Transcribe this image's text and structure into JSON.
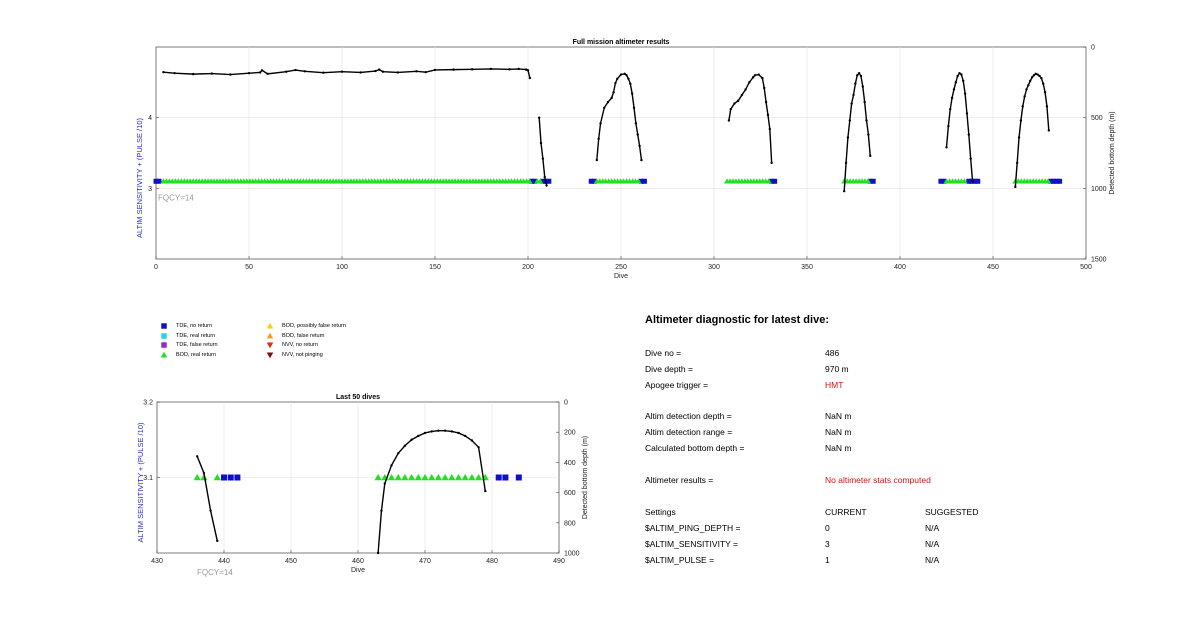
{
  "chart_data": [
    {
      "type": "scatter",
      "title": "Full mission altimeter results",
      "xlabel": "Dive",
      "ylabel_left": "ALTIM SENSITIVITY + (PULSE /10)",
      "ylabel_right": "Detected bottom depth (m)",
      "xlim": [
        0,
        500
      ],
      "ylim_left": [
        2,
        5
      ],
      "ylim_right": [
        0,
        1500
      ],
      "right_axis_reversed": true,
      "grid": true,
      "xticks": [
        0,
        50,
        100,
        150,
        200,
        250,
        300,
        350,
        400,
        450,
        500
      ],
      "yticks_left": [
        3,
        4
      ],
      "yticks_right": [
        0,
        500,
        1000,
        1500
      ],
      "annotation": "FQCY=14",
      "series": [
        {
          "label": "TDE, no return",
          "marker": "square",
          "color": "#1010c8",
          "y": 3.1,
          "x_ranges": [
            [
              0,
              3
            ],
            [
              202,
              204
            ],
            [
              208,
              212
            ],
            [
              234,
              236
            ],
            [
              261,
              264
            ],
            [
              331,
              334
            ],
            [
              384,
              387
            ],
            [
              422,
              424
            ],
            [
              437,
              442
            ],
            [
              481,
              486
            ]
          ]
        },
        {
          "label": "BOD, real return",
          "marker": "triangle",
          "color": "#22e022",
          "y": 3.1,
          "x_ranges": [
            [
              4,
              201
            ],
            [
              205,
              207
            ],
            [
              237,
              260
            ],
            [
              307,
              330
            ],
            [
              370,
              383
            ],
            [
              425,
              436
            ],
            [
              462,
              480
            ]
          ]
        },
        {
          "label": "Detected bottom depth",
          "marker": "line-dot",
          "color": "#000000",
          "axis": "right",
          "segments": [
            {
              "x": [
                4,
                10,
                20,
                30,
                40,
                50,
                56,
                57,
                60,
                70,
                75,
                80,
                90,
                100,
                110,
                118,
                120,
                122,
                130,
                140,
                145,
                150,
                160,
                170,
                180,
                190,
                195,
                199,
                200,
                201
              ],
              "y": [
                178,
                185,
                192,
                188,
                195,
                185,
                180,
                165,
                190,
                175,
                163,
                172,
                182,
                175,
                180,
                170,
                160,
                175,
                180,
                172,
                178,
                162,
                160,
                158,
                155,
                158,
                155,
                160,
                165,
                220
              ]
            },
            {
              "x": [
                206,
                207,
                208,
                209,
                210
              ],
              "y": [
                500,
                680,
                790,
                920,
                980
              ]
            },
            {
              "x": [
                237,
                238,
                239,
                241,
                243,
                245,
                246,
                247,
                248,
                250,
                252,
                253,
                254,
                255,
                256,
                257,
                258,
                259,
                260,
                261
              ],
              "y": [
                800,
                650,
                540,
                430,
                390,
                360,
                320,
                255,
                225,
                195,
                190,
                200,
                225,
                260,
                330,
                430,
                540,
                620,
                700,
                800
              ]
            },
            {
              "x": [
                308,
                309,
                311,
                313,
                315,
                317,
                319,
                321,
                322,
                324,
                326,
                327,
                328,
                329,
                330,
                331
              ],
              "y": [
                520,
                440,
                400,
                380,
                340,
                300,
                250,
                215,
                200,
                195,
                220,
                290,
                390,
                480,
                580,
                820
              ]
            },
            {
              "x": [
                370,
                371,
                372,
                373,
                374,
                375,
                376,
                377,
                378,
                379,
                380,
                381,
                382,
                383,
                384
              ],
              "y": [
                1020,
                820,
                640,
                520,
                400,
                340,
                260,
                200,
                185,
                205,
                280,
                390,
                520,
                620,
                770
              ]
            },
            {
              "x": [
                425,
                426,
                427,
                428,
                429,
                430,
                431,
                432,
                433,
                434,
                435,
                436,
                437,
                438,
                439
              ],
              "y": [
                710,
                560,
                440,
                360,
                300,
                250,
                205,
                185,
                195,
                240,
                330,
                470,
                620,
                790,
                950
              ]
            },
            {
              "x": [
                462,
                463,
                464,
                465,
                466,
                467,
                468,
                469,
                470,
                471,
                472,
                473,
                474,
                475,
                476,
                477,
                478,
                479,
                480
              ],
              "y": [
                990,
                820,
                640,
                520,
                420,
                350,
                300,
                270,
                240,
                215,
                200,
                190,
                195,
                205,
                220,
                260,
                320,
                420,
                590
              ]
            }
          ]
        }
      ]
    },
    {
      "type": "scatter",
      "title": "Last 50 dives",
      "xlabel": "Dive",
      "ylabel_left": "ALTIM SENSITIVITY + (PULSE /10)",
      "ylabel_right": "Detected bottom depth (m)",
      "xlim": [
        430,
        490
      ],
      "ylim_left": [
        3.0,
        3.2
      ],
      "ylim_right": [
        0,
        1000
      ],
      "right_axis_reversed": true,
      "grid": true,
      "xticks": [
        430,
        440,
        450,
        460,
        470,
        480,
        490
      ],
      "yticks_left": [
        3.1,
        3.2
      ],
      "yticks_right": [
        0,
        200,
        400,
        600,
        800,
        1000
      ],
      "annotation": "FQCY=14",
      "series": [
        {
          "label": "TDE, no return",
          "marker": "square",
          "color": "#1010c8",
          "y": 3.1,
          "x": [
            440,
            441,
            442,
            481,
            482,
            484
          ]
        },
        {
          "label": "BOD, real return",
          "marker": "triangle",
          "color": "#22e022",
          "y": 3.1,
          "x": [
            436,
            437,
            439,
            463,
            464,
            465,
            466,
            467,
            468,
            469,
            470,
            471,
            472,
            473,
            474,
            475,
            476,
            477,
            478,
            479
          ]
        },
        {
          "label": "Detected bottom depth",
          "marker": "line-dot",
          "color": "#000000",
          "axis": "right",
          "segments": [
            {
              "x": [
                436,
                437,
                438,
                439
              ],
              "y": [
                360,
                470,
                720,
                920
              ]
            },
            {
              "x": [
                463,
                463.5,
                464,
                465,
                466,
                467,
                468,
                469,
                470,
                471,
                472,
                473,
                474,
                475,
                476,
                477,
                478,
                479
              ],
              "y": [
                1000,
                720,
                540,
                420,
                340,
                290,
                250,
                225,
                205,
                195,
                190,
                190,
                195,
                205,
                225,
                255,
                300,
                590
              ]
            }
          ]
        }
      ]
    }
  ],
  "legend": [
    {
      "label": "TDE, no return",
      "marker": "square",
      "color": "#1010c8"
    },
    {
      "label": "TDE, real return",
      "marker": "square",
      "color": "#22d8e0"
    },
    {
      "label": "TDE, false return",
      "marker": "square",
      "color": "#8a2be2"
    },
    {
      "label": "BOD, real return",
      "marker": "triangle",
      "color": "#22e022"
    },
    {
      "label": "BOD, possibly false return",
      "marker": "triangle",
      "color": "#f2d21a"
    },
    {
      "label": "BOD, false return",
      "marker": "triangle",
      "color": "#f0a020"
    },
    {
      "label": "NVV, no return",
      "marker": "triangle-down",
      "color": "#e03010"
    },
    {
      "label": "NVV, not pinging",
      "marker": "triangle-down",
      "color": "#7a1010"
    }
  ],
  "diagnostic": {
    "title": "Altimeter diagnostic for latest dive:",
    "rows": [
      {
        "key": "Dive no =",
        "value": "486"
      },
      {
        "key": "Dive depth =",
        "value": "970 m"
      },
      {
        "key": "Apogee trigger =",
        "value": "HMT",
        "red": true
      },
      {
        "key": "Altim detection depth =",
        "value": "NaN m"
      },
      {
        "key": "Altim detection range =",
        "value": "NaN m"
      },
      {
        "key": "Calculated bottom depth =",
        "value": "NaN m"
      },
      {
        "key": "Altimeter results =",
        "value": "No altimeter stats computed",
        "red": true
      }
    ],
    "settings_header": {
      "key": "Settings",
      "current": "CURRENT",
      "suggested": "SUGGESTED"
    },
    "settings": [
      {
        "key": "$ALTIM_PING_DEPTH =",
        "current": "0",
        "suggested": "N/A"
      },
      {
        "key": "$ALTIM_SENSITIVITY =",
        "current": "3",
        "suggested": "N/A"
      },
      {
        "key": "$ALTIM_PULSE =",
        "current": "1",
        "suggested": "N/A"
      }
    ]
  }
}
